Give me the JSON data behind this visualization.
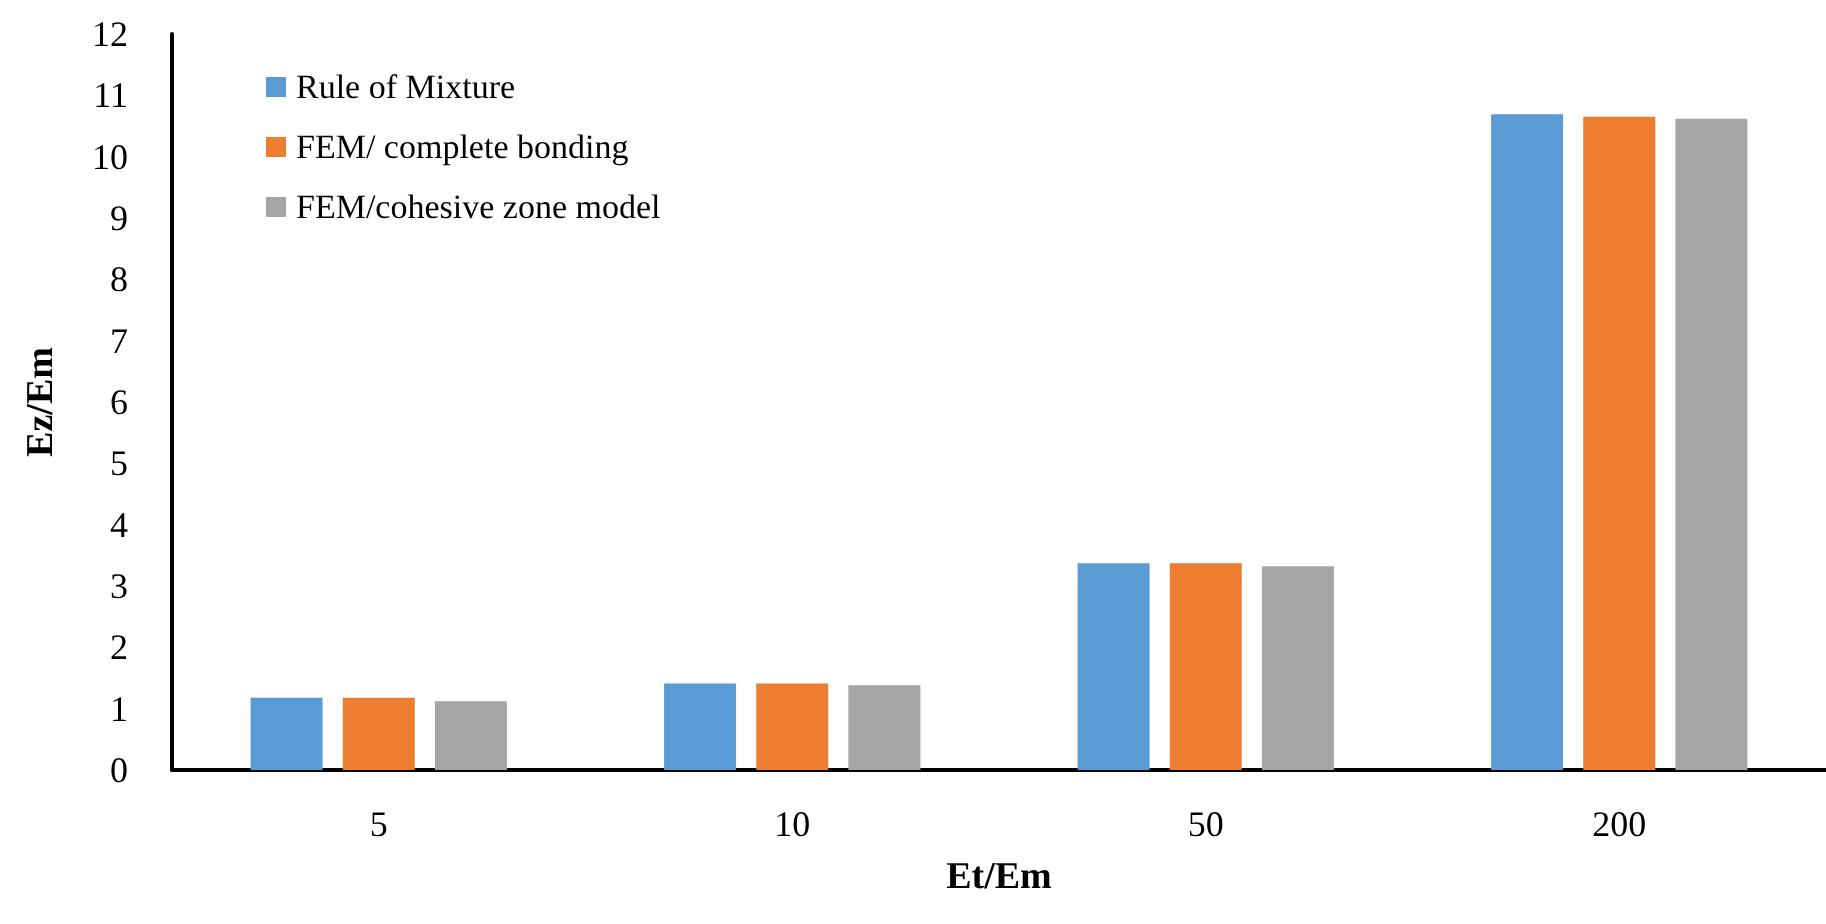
{
  "chart_data": {
    "type": "bar",
    "xlabel": "Et/Em",
    "ylabel": "Ez/Em",
    "categories": [
      "5",
      "10",
      "50",
      "200"
    ],
    "series": [
      {
        "name": "Rule of Mixture",
        "color": "#5b9bd5",
        "values": [
          1.18,
          1.41,
          3.37,
          10.69
        ]
      },
      {
        "name": "FEM/ complete bonding",
        "color": "#ed7d31",
        "values": [
          1.18,
          1.41,
          3.37,
          10.65
        ]
      },
      {
        "name": "FEM/cohesive zone model",
        "color": "#a5a5a5",
        "values": [
          1.12,
          1.38,
          3.32,
          10.62
        ]
      }
    ],
    "ylim": [
      0,
      12
    ],
    "yticks": [
      0,
      1,
      2,
      3,
      4,
      5,
      6,
      7,
      8,
      9,
      10,
      11,
      12
    ],
    "grid": false,
    "legend": "top left"
  }
}
